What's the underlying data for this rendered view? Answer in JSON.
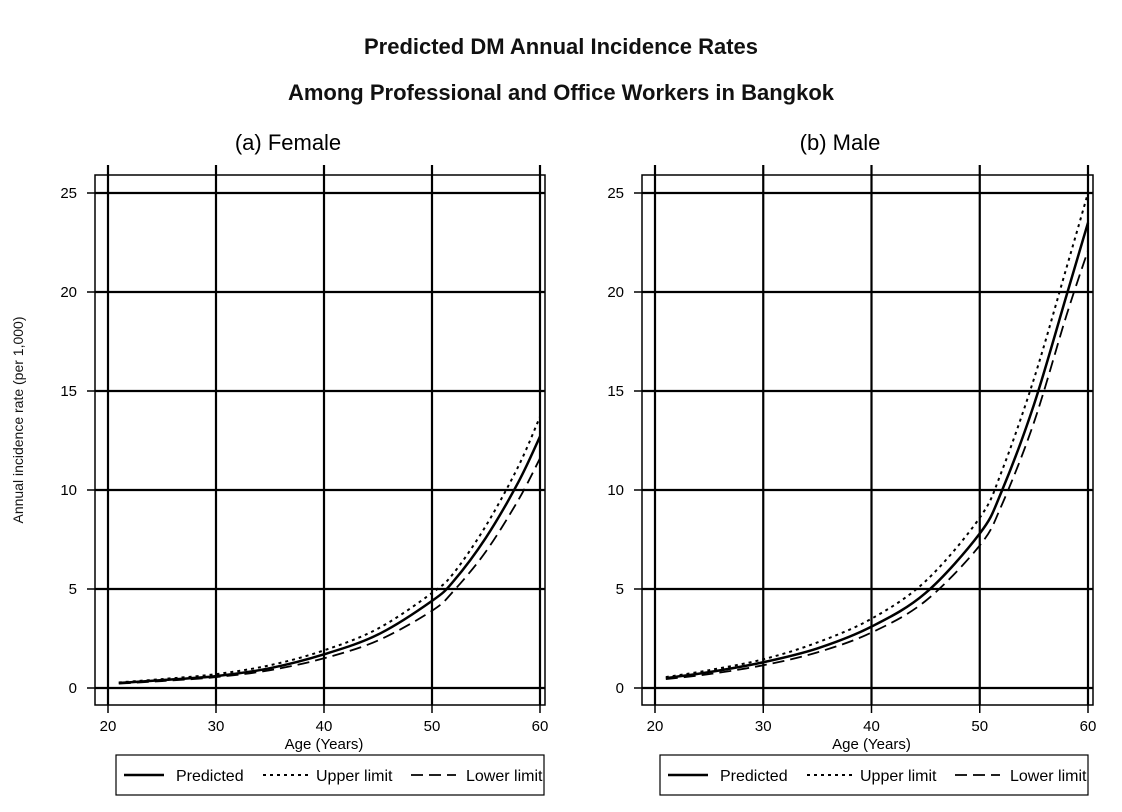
{
  "title": "Predicted DM Annual Incidence Rates",
  "subtitle": "Among Professional and Office Workers in Bangkok",
  "ylabel": "Annual incidence rate (per 1,000)",
  "chart_data": [
    {
      "type": "line",
      "title": "(a) Female",
      "xlabel": "Age (Years)",
      "xlim": [
        20,
        60
      ],
      "ylim": [
        0,
        25
      ],
      "xticks": [
        20,
        30,
        40,
        50,
        60
      ],
      "yticks": [
        0,
        5,
        10,
        15,
        20,
        25
      ],
      "grid": true,
      "legend": {
        "position": "bottom",
        "items": [
          "Predicted",
          "Upper limit",
          "Lower limit"
        ]
      },
      "x": [
        21,
        25,
        30,
        35,
        40,
        45,
        50,
        52,
        55,
        58,
        60
      ],
      "series": [
        {
          "name": "Predicted",
          "style": "solid",
          "values": [
            0.25,
            0.4,
            0.6,
            1.0,
            1.7,
            2.7,
            4.4,
            5.4,
            7.6,
            10.4,
            12.7
          ]
        },
        {
          "name": "Upper limit",
          "style": "dotted",
          "values": [
            0.28,
            0.45,
            0.7,
            1.15,
            1.9,
            3.0,
            4.8,
            5.8,
            8.2,
            11.2,
            13.7
          ]
        },
        {
          "name": "Lower limit",
          "style": "dashed",
          "values": [
            0.22,
            0.35,
            0.55,
            0.9,
            1.5,
            2.4,
            3.9,
            4.9,
            6.9,
            9.5,
            11.6
          ]
        }
      ]
    },
    {
      "type": "line",
      "title": "(b) Male",
      "xlabel": "Age (Years)",
      "xlim": [
        20,
        60
      ],
      "ylim": [
        0,
        25
      ],
      "xticks": [
        20,
        30,
        40,
        50,
        60
      ],
      "yticks": [
        0,
        5,
        10,
        15,
        20,
        25
      ],
      "grid": true,
      "legend": {
        "position": "bottom",
        "items": [
          "Predicted",
          "Upper limit",
          "Lower limit"
        ]
      },
      "x": [
        21,
        25,
        30,
        35,
        40,
        45,
        50,
        52,
        55,
        58,
        60
      ],
      "series": [
        {
          "name": "Predicted",
          "style": "solid",
          "values": [
            0.5,
            0.8,
            1.3,
            2.0,
            3.1,
            4.8,
            7.8,
            9.9,
            14.3,
            19.8,
            23.5
          ]
        },
        {
          "name": "Upper limit",
          "style": "dotted",
          "values": [
            0.55,
            0.9,
            1.45,
            2.3,
            3.5,
            5.4,
            8.6,
            10.9,
            15.6,
            21.2,
            25.0
          ]
        },
        {
          "name": "Lower limit",
          "style": "dashed",
          "values": [
            0.45,
            0.7,
            1.15,
            1.8,
            2.8,
            4.4,
            7.2,
            9.2,
            13.4,
            18.8,
            22.1
          ]
        }
      ]
    }
  ]
}
